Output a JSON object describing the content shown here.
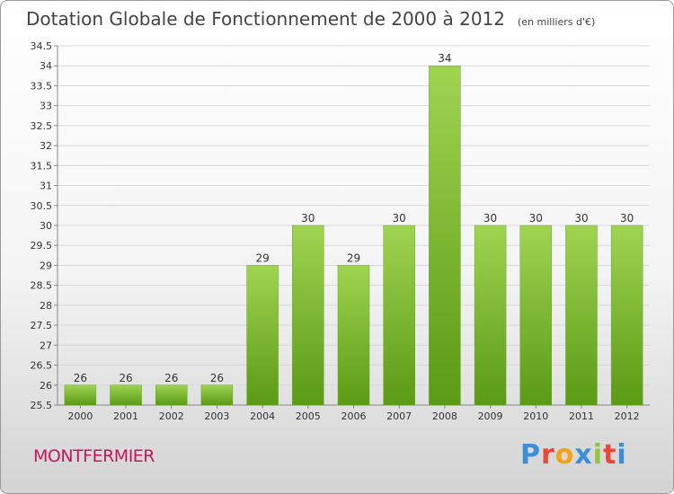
{
  "header": {
    "title": "Dotation Globale de Fonctionnement de 2000 à 2012",
    "unit": "(en milliers d'€)"
  },
  "footer": {
    "commune": "MONTFERMIER",
    "brand_letters": [
      "P",
      "r",
      "o",
      "x",
      "i",
      "t",
      "i"
    ],
    "brand_colors": [
      "#3b8fd9",
      "#e8473b",
      "#f2a21b",
      "#3b8fd9",
      "#8cc63e",
      "#e8473b",
      "#3b8fd9"
    ]
  },
  "chart_data": {
    "type": "bar",
    "categories": [
      "2000",
      "2001",
      "2002",
      "2003",
      "2004",
      "2005",
      "2006",
      "2007",
      "2008",
      "2009",
      "2010",
      "2011",
      "2012"
    ],
    "values": [
      26,
      26,
      26,
      26,
      29,
      30,
      29,
      30,
      34,
      30,
      30,
      30,
      30
    ],
    "data_labels": [
      "26",
      "26",
      "26",
      "26",
      "29",
      "30",
      "29",
      "30",
      "34",
      "30",
      "30",
      "30",
      "30"
    ],
    "ylim": [
      25.5,
      34.5
    ],
    "yticks": [
      "25.5",
      "26",
      "26.5",
      "27",
      "27.5",
      "28",
      "28.5",
      "29",
      "29.5",
      "30",
      "30.5",
      "31",
      "31.5",
      "32",
      "32.5",
      "33",
      "33.5",
      "34",
      "34.5"
    ],
    "grid": true,
    "bar_color": "#7cb82f"
  }
}
